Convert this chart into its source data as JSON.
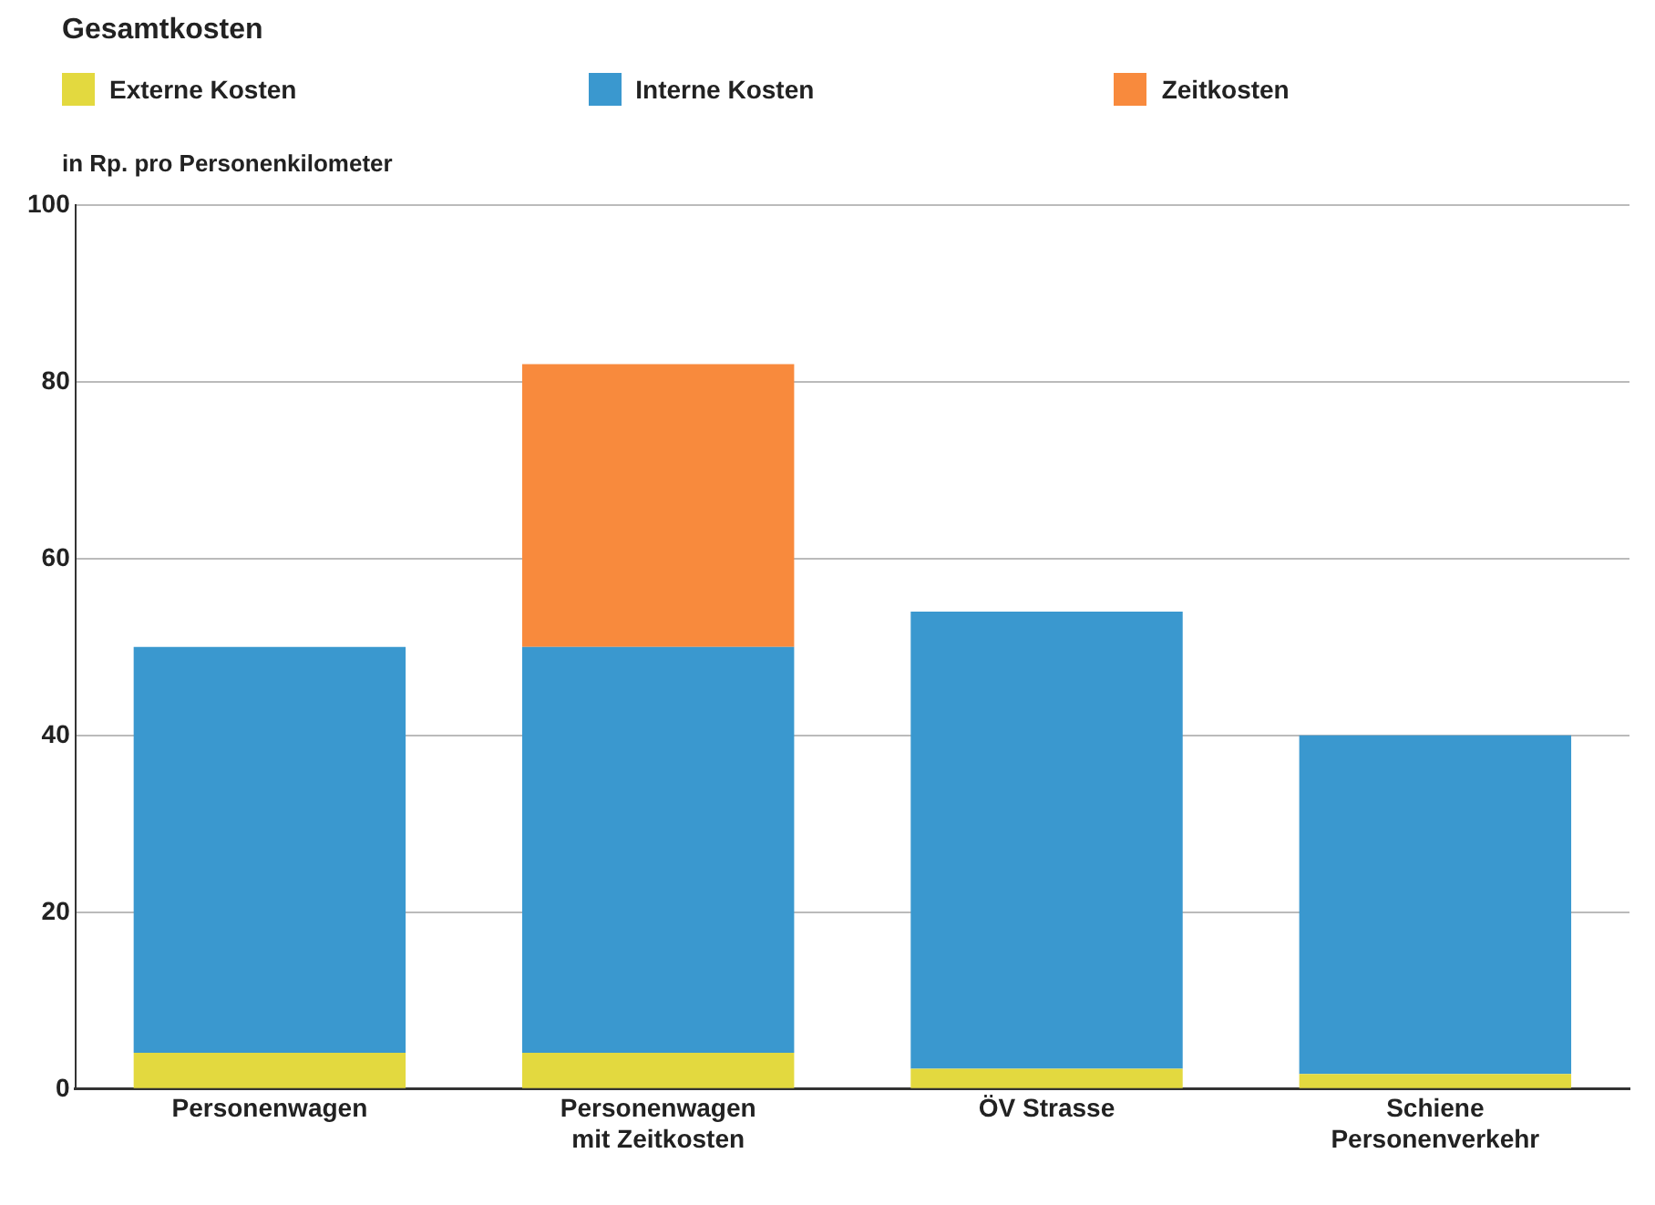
{
  "chart_data": {
    "type": "bar",
    "title": "Gesamtkosten",
    "ylabel": "in Rp. pro Personenkilometer",
    "categories": [
      "Personenwagen",
      "Personenwagen mit Zeitkosten",
      "ÖV Strasse",
      "Schiene Personenverkehr"
    ],
    "series": [
      {
        "name": "Externe Kosten",
        "color": "#e3d93f",
        "values": [
          4.1,
          4.1,
          2.3,
          1.7
        ]
      },
      {
        "name": "Interne Kosten",
        "color": "#3a98cf",
        "values": [
          45.9,
          45.9,
          51.7,
          38.3
        ]
      },
      {
        "name": "Zeitkosten",
        "color": "#f88a3d",
        "values": [
          null,
          32,
          null,
          null
        ]
      }
    ],
    "stacked": true,
    "ylim": [
      0,
      100
    ],
    "yticks": [
      0,
      20,
      40,
      60,
      80,
      100
    ],
    "grid": "y",
    "legend": "top left"
  }
}
